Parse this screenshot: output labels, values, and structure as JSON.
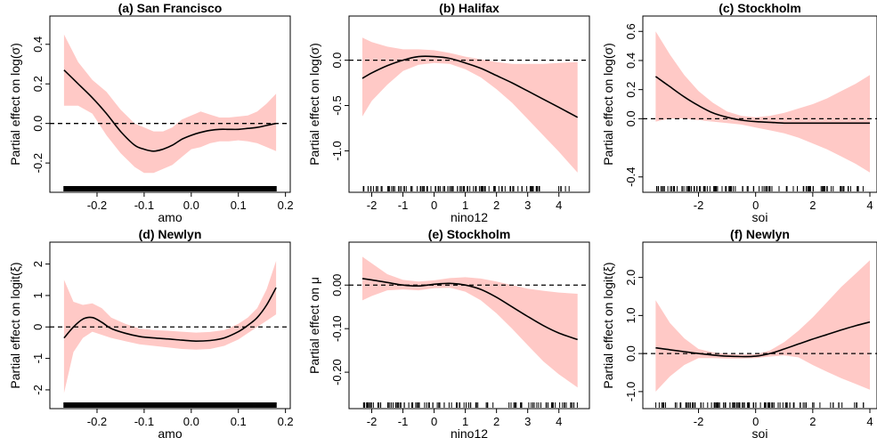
{
  "chart_data": [
    {
      "panel": "a",
      "type": "line",
      "title": "(a) San Francisco",
      "xlabel": "amo",
      "ylabel": "Partial effect on log(σ)",
      "xlim": [
        -0.285,
        0.195
      ],
      "ylim": [
        -0.285,
        0.48
      ],
      "xticks": [
        -0.2,
        -0.1,
        0.0,
        0.1,
        0.2
      ],
      "xtick_labels": [
        "-0.2",
        "-0.1",
        "0.0",
        "0.1",
        "0.2"
      ],
      "yticks": [
        -0.2,
        0.0,
        0.2,
        0.4
      ],
      "ytick_labels": [
        "-0.2",
        "0.0",
        "0.2",
        "0.4"
      ],
      "reference_line": 0,
      "x": [
        -0.27,
        -0.24,
        -0.21,
        -0.18,
        -0.15,
        -0.12,
        -0.1,
        -0.08,
        -0.06,
        -0.04,
        -0.02,
        0.0,
        0.02,
        0.04,
        0.06,
        0.08,
        0.1,
        0.12,
        0.14,
        0.16,
        0.18
      ],
      "estimate": [
        0.27,
        0.2,
        0.13,
        0.05,
        -0.04,
        -0.11,
        -0.13,
        -0.14,
        -0.13,
        -0.11,
        -0.08,
        -0.06,
        -0.045,
        -0.035,
        -0.03,
        -0.03,
        -0.03,
        -0.025,
        -0.02,
        -0.01,
        0.0
      ],
      "lower": [
        0.09,
        0.09,
        0.05,
        -0.06,
        -0.15,
        -0.22,
        -0.25,
        -0.25,
        -0.23,
        -0.21,
        -0.17,
        -0.13,
        -0.12,
        -0.1,
        -0.09,
        -0.09,
        -0.085,
        -0.09,
        -0.1,
        -0.12,
        -0.14
      ],
      "upper": [
        0.45,
        0.31,
        0.22,
        0.16,
        0.07,
        0.0,
        -0.02,
        -0.04,
        -0.04,
        -0.02,
        0.02,
        0.04,
        0.06,
        0.045,
        0.03,
        0.03,
        0.035,
        0.04,
        0.06,
        0.1,
        0.15
      ],
      "rug": "dense"
    },
    {
      "panel": "b",
      "type": "line",
      "title": "(b) Halifax",
      "xlabel": "nino12",
      "ylabel": "Partial effect on log(σ)",
      "xlim": [
        -2.5,
        4.75
      ],
      "ylim": [
        -1.32,
        0.35
      ],
      "xticks": [
        -2,
        -1,
        0,
        1,
        2,
        3,
        4
      ],
      "xtick_labels": [
        "-2",
        "-1",
        "0",
        "1",
        "2",
        "3",
        "4"
      ],
      "yticks": [
        -1.0,
        -0.5,
        0.0
      ],
      "ytick_labels": [
        "-1.0",
        "-0.5",
        "0.0"
      ],
      "reference_line": 0,
      "x": [
        -2.3,
        -2.0,
        -1.5,
        -1.0,
        -0.5,
        0.0,
        0.5,
        1.0,
        1.5,
        2.0,
        2.5,
        3.0,
        3.5,
        4.0,
        4.6
      ],
      "estimate": [
        -0.2,
        -0.14,
        -0.06,
        0.0,
        0.04,
        0.04,
        0.02,
        -0.03,
        -0.09,
        -0.17,
        -0.25,
        -0.34,
        -0.43,
        -0.52,
        -0.63
      ],
      "lower": [
        -0.62,
        -0.45,
        -0.27,
        -0.12,
        -0.05,
        -0.03,
        -0.04,
        -0.1,
        -0.19,
        -0.32,
        -0.47,
        -0.65,
        -0.83,
        -1.01,
        -1.24
      ],
      "upper": [
        0.25,
        0.2,
        0.15,
        0.12,
        0.12,
        0.11,
        0.08,
        0.04,
        0.01,
        -0.02,
        -0.04,
        -0.04,
        -0.04,
        -0.03,
        -0.02
      ],
      "rug": "sparse"
    },
    {
      "panel": "c",
      "type": "line",
      "title": "(c) Stockholm",
      "xlabel": "soi",
      "ylabel": "Partial effect on log(σ)",
      "xlim": [
        -3.7,
        4.0
      ],
      "ylim": [
        -0.42,
        0.62
      ],
      "xticks": [
        -2,
        0,
        2,
        4
      ],
      "xtick_labels": [
        "-2",
        "0",
        "2",
        "4"
      ],
      "yticks": [
        -0.4,
        0.0,
        0.2,
        0.4,
        0.6
      ],
      "ytick_labels": [
        "-0.4",
        "0.0",
        "0.2",
        "0.4",
        "0.6"
      ],
      "reference_line": 0,
      "x": [
        -3.5,
        -3.0,
        -2.5,
        -2.0,
        -1.5,
        -1.0,
        -0.5,
        0.0,
        0.5,
        1.0,
        1.5,
        2.0,
        2.5,
        3.0,
        3.5,
        4.0
      ],
      "estimate": [
        0.29,
        0.22,
        0.15,
        0.09,
        0.04,
        0.01,
        -0.01,
        -0.02,
        -0.025,
        -0.03,
        -0.03,
        -0.03,
        -0.03,
        -0.03,
        -0.03,
        -0.03
      ],
      "lower": [
        -0.02,
        0.0,
        0.0,
        -0.01,
        -0.02,
        -0.03,
        -0.04,
        -0.06,
        -0.08,
        -0.1,
        -0.13,
        -0.17,
        -0.21,
        -0.26,
        -0.31,
        -0.37
      ],
      "upper": [
        0.6,
        0.44,
        0.3,
        0.19,
        0.11,
        0.05,
        0.02,
        0.01,
        0.02,
        0.04,
        0.07,
        0.1,
        0.14,
        0.19,
        0.24,
        0.3
      ],
      "rug": "sparse"
    },
    {
      "panel": "d",
      "type": "line",
      "title": "(d) Newlyn",
      "xlabel": "amo",
      "ylabel": "Partial effect on logit(ξ)",
      "xlim": [
        -0.285,
        0.195
      ],
      "ylim": [
        -2.2,
        2.3
      ],
      "xticks": [
        -0.2,
        -0.1,
        0.0,
        0.1,
        0.2
      ],
      "xtick_labels": [
        "-0.2",
        "-0.1",
        "0.0",
        "0.1",
        "0.2"
      ],
      "yticks": [
        -2,
        -1,
        0,
        1,
        2
      ],
      "ytick_labels": [
        "-2",
        "-1",
        "0",
        "1",
        "2"
      ],
      "reference_line": 0,
      "x": [
        -0.27,
        -0.25,
        -0.23,
        -0.21,
        -0.19,
        -0.17,
        -0.14,
        -0.11,
        -0.08,
        -0.05,
        -0.02,
        0.01,
        0.04,
        0.07,
        0.1,
        0.12,
        0.14,
        0.16,
        0.18
      ],
      "estimate": [
        -0.35,
        0.0,
        0.25,
        0.3,
        0.15,
        -0.05,
        -0.2,
        -0.3,
        -0.35,
        -0.38,
        -0.42,
        -0.45,
        -0.43,
        -0.35,
        -0.15,
        0.05,
        0.3,
        0.7,
        1.25
      ],
      "lower": [
        -2.1,
        -0.8,
        -0.35,
        -0.15,
        -0.25,
        -0.35,
        -0.45,
        -0.55,
        -0.6,
        -0.65,
        -0.7,
        -0.72,
        -0.7,
        -0.6,
        -0.4,
        -0.2,
        0.0,
        0.2,
        0.4
      ],
      "upper": [
        1.5,
        0.8,
        0.7,
        0.75,
        0.6,
        0.3,
        0.1,
        -0.05,
        -0.1,
        -0.12,
        -0.15,
        -0.18,
        -0.16,
        -0.1,
        0.1,
        0.3,
        0.6,
        1.2,
        2.1
      ],
      "rug": "dense"
    },
    {
      "panel": "e",
      "type": "line",
      "title": "(e) Stockholm",
      "xlabel": "nino12",
      "ylabel": "Partial effect on μ",
      "xlim": [
        -2.5,
        4.75
      ],
      "ylim": [
        -0.255,
        0.07
      ],
      "xticks": [
        -2,
        -1,
        0,
        1,
        2,
        3,
        4
      ],
      "xtick_labels": [
        "-2",
        "-1",
        "0",
        "1",
        "2",
        "3",
        "4"
      ],
      "yticks": [
        -0.2,
        -0.1,
        0.0
      ],
      "ytick_labels": [
        "-0.20",
        "-0.10",
        "0.00"
      ],
      "reference_line": 0,
      "x": [
        -2.3,
        -2.0,
        -1.5,
        -1.0,
        -0.5,
        0.0,
        0.5,
        1.0,
        1.5,
        2.0,
        2.5,
        3.0,
        3.5,
        4.0,
        4.6
      ],
      "estimate": [
        0.015,
        0.012,
        0.006,
        0.0,
        -0.002,
        0.002,
        0.004,
        0.0,
        -0.01,
        -0.028,
        -0.05,
        -0.072,
        -0.093,
        -0.11,
        -0.125
      ],
      "lower": [
        -0.035,
        -0.025,
        -0.012,
        -0.01,
        -0.012,
        -0.007,
        -0.006,
        -0.015,
        -0.035,
        -0.065,
        -0.1,
        -0.138,
        -0.175,
        -0.205,
        -0.235
      ],
      "upper": [
        0.065,
        0.05,
        0.025,
        0.012,
        0.008,
        0.011,
        0.016,
        0.018,
        0.015,
        0.008,
        0.0,
        -0.008,
        -0.013,
        -0.017,
        -0.02
      ],
      "rug": "sparse"
    },
    {
      "panel": "f",
      "type": "line",
      "title": "(f) Newlyn",
      "xlabel": "soi",
      "ylabel": "Partial effect on logit(ξ)",
      "xlim": [
        -3.7,
        4.0
      ],
      "ylim": [
        -1.12,
        2.6
      ],
      "xticks": [
        -2,
        0,
        2,
        4
      ],
      "xtick_labels": [
        "-2",
        "0",
        "2",
        "4"
      ],
      "yticks": [
        -1.0,
        0.0,
        1.0,
        2.0
      ],
      "ytick_labels": [
        "-1.0",
        "0.0",
        "1.0",
        "2.0"
      ],
      "reference_line": 0,
      "x": [
        -3.5,
        -3.0,
        -2.5,
        -2.0,
        -1.5,
        -1.0,
        -0.5,
        0.0,
        0.5,
        1.0,
        1.5,
        2.0,
        2.5,
        3.0,
        3.5,
        4.0
      ],
      "estimate": [
        0.15,
        0.1,
        0.05,
        0.0,
        -0.04,
        -0.07,
        -0.08,
        -0.07,
        0.0,
        0.12,
        0.25,
        0.38,
        0.5,
        0.62,
        0.73,
        0.83
      ],
      "lower": [
        -1.0,
        -0.6,
        -0.3,
        -0.12,
        -0.12,
        -0.13,
        -0.13,
        -0.12,
        -0.08,
        -0.05,
        -0.1,
        -0.3,
        -0.48,
        -0.65,
        -0.8,
        -0.95
      ],
      "upper": [
        1.4,
        0.8,
        0.4,
        0.12,
        0.03,
        -0.01,
        -0.03,
        -0.02,
        0.08,
        0.3,
        0.6,
        0.95,
        1.35,
        1.75,
        2.1,
        2.45
      ],
      "rug": "sparse"
    }
  ],
  "colors": {
    "band": "#ffc9c6",
    "line": "#000000",
    "reference": "#000000",
    "axis": "#000000"
  }
}
